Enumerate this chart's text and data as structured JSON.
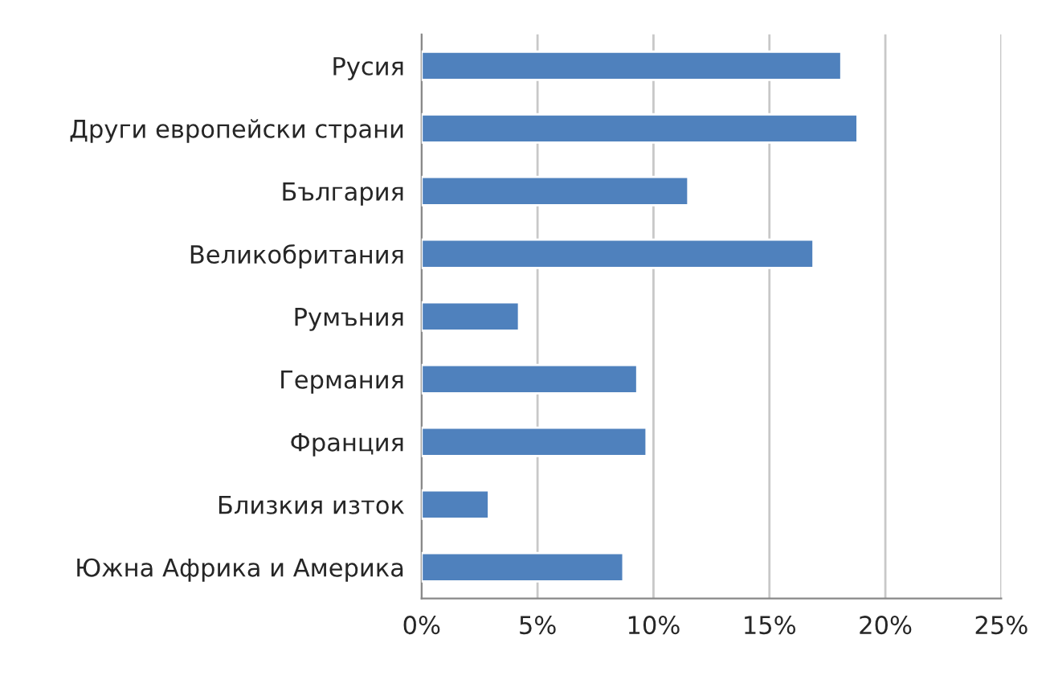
{
  "chart_data": {
    "type": "bar",
    "orientation": "horizontal",
    "categories": [
      "Русия",
      "Други европейски страни",
      "България",
      "Великобритания",
      "Румъния",
      "Германия",
      "Франция",
      "Близкия изток",
      "Южна Африка и Америка"
    ],
    "values": [
      18.1,
      18.8,
      11.5,
      16.9,
      4.2,
      9.3,
      9.7,
      2.9,
      8.7
    ],
    "color": "#4f81bd",
    "xlim": [
      0,
      25
    ],
    "xticks": [
      {
        "value": 0,
        "label": "0%"
      },
      {
        "value": 5,
        "label": "5%"
      },
      {
        "value": 10,
        "label": "10%"
      },
      {
        "value": 15,
        "label": "15%"
      },
      {
        "value": 20,
        "label": "20%"
      },
      {
        "value": 25,
        "label": "25%"
      }
    ],
    "grid": "x"
  }
}
